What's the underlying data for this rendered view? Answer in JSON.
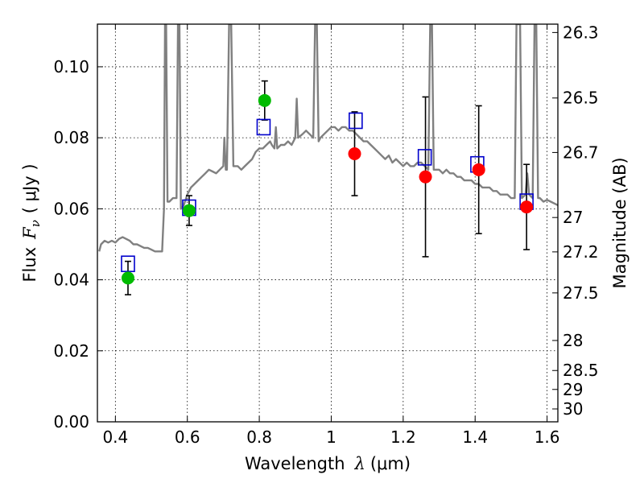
{
  "chart_data": {
    "type": "scatter",
    "title": "",
    "xlabel_prefix": "Wavelength",
    "xlabel_symbol": "λ",
    "xlabel_unit": "(μm)",
    "ylabel_prefix": "Flux",
    "ylabel_symbol": "F",
    "ylabel_subscript": "ν",
    "ylabel_unit": "( μJy )",
    "y2label": "Magnitude (AB)",
    "xlim": [
      0.35,
      1.63
    ],
    "ylim": [
      0.0,
      0.112
    ],
    "grid": true,
    "x_ticks": [
      {
        "value": 0.4,
        "label": "0.4"
      },
      {
        "value": 0.6,
        "label": "0.6"
      },
      {
        "value": 0.8,
        "label": "0.8"
      },
      {
        "value": 1.0,
        "label": "1"
      },
      {
        "value": 1.2,
        "label": "1.2"
      },
      {
        "value": 1.4,
        "label": "1.4"
      },
      {
        "value": 1.6,
        "label": "1.6"
      }
    ],
    "y_ticks": [
      {
        "value": 0.0,
        "label": "0.00"
      },
      {
        "value": 0.02,
        "label": "0.02"
      },
      {
        "value": 0.04,
        "label": "0.04"
      },
      {
        "value": 0.06,
        "label": "0.06"
      },
      {
        "value": 0.08,
        "label": "0.08"
      },
      {
        "value": 0.1,
        "label": "0.10"
      }
    ],
    "mag_ticks": [
      {
        "value": 26.3,
        "label": "26.3"
      },
      {
        "value": 26.5,
        "label": "26.5"
      },
      {
        "value": 26.7,
        "label": "26.7"
      },
      {
        "value": 27.0,
        "label": "27"
      },
      {
        "value": 27.2,
        "label": "27.2"
      },
      {
        "value": 27.5,
        "label": "27.5"
      },
      {
        "value": 28.0,
        "label": "28"
      },
      {
        "value": 28.5,
        "label": "28.5"
      },
      {
        "value": 29.0,
        "label": "29"
      },
      {
        "value": 30.0,
        "label": "30"
      }
    ],
    "model_spectrum": {
      "color": "#808080",
      "points": [
        [
          0.355,
          0.048
        ],
        [
          0.36,
          0.05
        ],
        [
          0.37,
          0.051
        ],
        [
          0.38,
          0.0505
        ],
        [
          0.39,
          0.051
        ],
        [
          0.4,
          0.0505
        ],
        [
          0.41,
          0.0515
        ],
        [
          0.42,
          0.052
        ],
        [
          0.43,
          0.0515
        ],
        [
          0.44,
          0.051
        ],
        [
          0.45,
          0.05
        ],
        [
          0.46,
          0.05
        ],
        [
          0.47,
          0.0495
        ],
        [
          0.48,
          0.049
        ],
        [
          0.49,
          0.049
        ],
        [
          0.5,
          0.0485
        ],
        [
          0.51,
          0.048
        ],
        [
          0.52,
          0.048
        ],
        [
          0.53,
          0.048
        ],
        [
          0.535,
          0.06
        ],
        [
          0.538,
          0.112
        ],
        [
          0.541,
          0.112
        ],
        [
          0.545,
          0.062
        ],
        [
          0.55,
          0.062
        ],
        [
          0.56,
          0.063
        ],
        [
          0.57,
          0.063
        ],
        [
          0.574,
          0.112
        ],
        [
          0.578,
          0.112
        ],
        [
          0.582,
          0.06
        ],
        [
          0.59,
          0.061
        ],
        [
          0.6,
          0.064
        ],
        [
          0.61,
          0.066
        ],
        [
          0.62,
          0.067
        ],
        [
          0.63,
          0.068
        ],
        [
          0.64,
          0.069
        ],
        [
          0.65,
          0.07
        ],
        [
          0.66,
          0.071
        ],
        [
          0.67,
          0.0705
        ],
        [
          0.68,
          0.07
        ],
        [
          0.69,
          0.071
        ],
        [
          0.7,
          0.072
        ],
        [
          0.703,
          0.08
        ],
        [
          0.707,
          0.071
        ],
        [
          0.71,
          0.071
        ],
        [
          0.716,
          0.112
        ],
        [
          0.722,
          0.112
        ],
        [
          0.728,
          0.072
        ],
        [
          0.74,
          0.072
        ],
        [
          0.75,
          0.071
        ],
        [
          0.76,
          0.072
        ],
        [
          0.77,
          0.073
        ],
        [
          0.78,
          0.074
        ],
        [
          0.79,
          0.076
        ],
        [
          0.8,
          0.077
        ],
        [
          0.81,
          0.077
        ],
        [
          0.82,
          0.078
        ],
        [
          0.83,
          0.079
        ],
        [
          0.835,
          0.078
        ],
        [
          0.842,
          0.077
        ],
        [
          0.846,
          0.083
        ],
        [
          0.85,
          0.077
        ],
        [
          0.86,
          0.078
        ],
        [
          0.87,
          0.078
        ],
        [
          0.88,
          0.079
        ],
        [
          0.89,
          0.078
        ],
        [
          0.9,
          0.08
        ],
        [
          0.904,
          0.091
        ],
        [
          0.908,
          0.08
        ],
        [
          0.92,
          0.081
        ],
        [
          0.93,
          0.082
        ],
        [
          0.94,
          0.081
        ],
        [
          0.95,
          0.08
        ],
        [
          0.955,
          0.112
        ],
        [
          0.96,
          0.112
        ],
        [
          0.965,
          0.079
        ],
        [
          0.97,
          0.08
        ],
        [
          0.98,
          0.081
        ],
        [
          0.99,
          0.082
        ],
        [
          1.0,
          0.083
        ],
        [
          1.01,
          0.083
        ],
        [
          1.02,
          0.082
        ],
        [
          1.03,
          0.083
        ],
        [
          1.04,
          0.083
        ],
        [
          1.05,
          0.082
        ],
        [
          1.06,
          0.082
        ],
        [
          1.07,
          0.081
        ],
        [
          1.08,
          0.08
        ],
        [
          1.09,
          0.079
        ],
        [
          1.1,
          0.079
        ],
        [
          1.11,
          0.078
        ],
        [
          1.12,
          0.077
        ],
        [
          1.13,
          0.076
        ],
        [
          1.14,
          0.075
        ],
        [
          1.15,
          0.074
        ],
        [
          1.16,
          0.075
        ],
        [
          1.17,
          0.073
        ],
        [
          1.18,
          0.074
        ],
        [
          1.19,
          0.073
        ],
        [
          1.2,
          0.072
        ],
        [
          1.21,
          0.073
        ],
        [
          1.22,
          0.072
        ],
        [
          1.23,
          0.072
        ],
        [
          1.24,
          0.073
        ],
        [
          1.25,
          0.073
        ],
        [
          1.26,
          0.072
        ],
        [
          1.27,
          0.071
        ],
        [
          1.275,
          0.112
        ],
        [
          1.28,
          0.112
        ],
        [
          1.285,
          0.071
        ],
        [
          1.3,
          0.071
        ],
        [
          1.31,
          0.07
        ],
        [
          1.32,
          0.071
        ],
        [
          1.33,
          0.07
        ],
        [
          1.34,
          0.07
        ],
        [
          1.35,
          0.069
        ],
        [
          1.36,
          0.069
        ],
        [
          1.37,
          0.068
        ],
        [
          1.38,
          0.068
        ],
        [
          1.39,
          0.068
        ],
        [
          1.4,
          0.067
        ],
        [
          1.41,
          0.067
        ],
        [
          1.42,
          0.066
        ],
        [
          1.43,
          0.066
        ],
        [
          1.44,
          0.066
        ],
        [
          1.45,
          0.065
        ],
        [
          1.46,
          0.065
        ],
        [
          1.47,
          0.064
        ],
        [
          1.48,
          0.064
        ],
        [
          1.49,
          0.064
        ],
        [
          1.5,
          0.063
        ],
        [
          1.51,
          0.063
        ],
        [
          1.515,
          0.112
        ],
        [
          1.525,
          0.112
        ],
        [
          1.53,
          0.063
        ],
        [
          1.54,
          0.064
        ],
        [
          1.545,
          0.07
        ],
        [
          1.55,
          0.064
        ],
        [
          1.56,
          0.063
        ],
        [
          1.565,
          0.112
        ],
        [
          1.57,
          0.112
        ],
        [
          1.575,
          0.063
        ],
        [
          1.58,
          0.063
        ],
        [
          1.59,
          0.062
        ],
        [
          1.6,
          0.0625
        ],
        [
          1.61,
          0.062
        ],
        [
          1.62,
          0.0615
        ],
        [
          1.63,
          0.061
        ]
      ]
    },
    "observed_points": [
      {
        "x": 0.435,
        "y": 0.0405,
        "yerr": 0.0047,
        "color": "#00bb00"
      },
      {
        "x": 0.605,
        "y": 0.0595,
        "yerr": 0.0042,
        "color": "#00bb00"
      },
      {
        "x": 0.815,
        "y": 0.0905,
        "yerr": 0.0055,
        "color": "#00bb00"
      },
      {
        "x": 1.065,
        "y": 0.0755,
        "yerr": 0.0118,
        "color": "#ff0000"
      },
      {
        "x": 1.262,
        "y": 0.069,
        "yerr": 0.0225,
        "color": "#ff0000"
      },
      {
        "x": 1.41,
        "y": 0.071,
        "yerr": 0.018,
        "color": "#ff0000"
      },
      {
        "x": 1.543,
        "y": 0.0605,
        "yerr": 0.012,
        "color": "#ff0000"
      }
    ],
    "model_photometry": {
      "color": "#0000cc",
      "points": [
        {
          "x": 0.435,
          "y": 0.0445
        },
        {
          "x": 0.605,
          "y": 0.0603
        },
        {
          "x": 0.812,
          "y": 0.083
        },
        {
          "x": 1.068,
          "y": 0.0848
        },
        {
          "x": 1.26,
          "y": 0.0745
        },
        {
          "x": 1.406,
          "y": 0.0725
        },
        {
          "x": 1.543,
          "y": 0.062
        }
      ]
    }
  }
}
